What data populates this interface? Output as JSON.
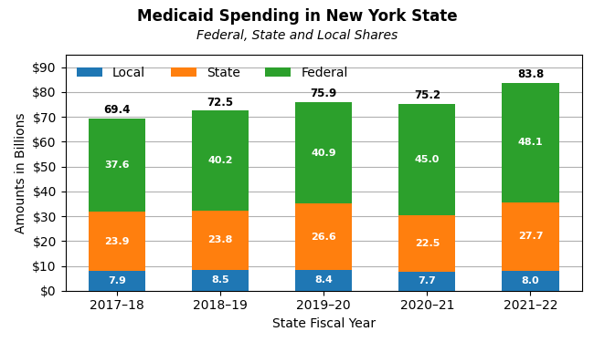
{
  "chart_data": {
    "type": "bar",
    "stacked": true,
    "title": "Medicaid Spending in New York State",
    "subtitle": "Federal, State and Local Shares",
    "xlabel": "State Fiscal Year",
    "ylabel": "Amounts in Billions",
    "categories": [
      "2017–18",
      "2018–19",
      "2019–20",
      "2020–21",
      "2021–22"
    ],
    "series": [
      {
        "name": "Local",
        "values": [
          7.9,
          8.5,
          8.4,
          7.7,
          8.0
        ]
      },
      {
        "name": "State",
        "values": [
          23.9,
          23.8,
          26.6,
          22.5,
          27.7
        ]
      },
      {
        "name": "Federal",
        "values": [
          37.6,
          40.2,
          40.9,
          45.0,
          48.1
        ]
      }
    ],
    "totals": [
      69.4,
      72.5,
      75.9,
      75.2,
      83.8
    ],
    "ylim": [
      0,
      95
    ],
    "yticks": [
      {
        "value": 0,
        "label": "$0"
      },
      {
        "value": 10,
        "label": "$10"
      },
      {
        "value": 20,
        "label": "$20"
      },
      {
        "value": 30,
        "label": "$30"
      },
      {
        "value": 40,
        "label": "$40"
      },
      {
        "value": 50,
        "label": "$50"
      },
      {
        "value": 60,
        "label": "$60"
      },
      {
        "value": 70,
        "label": "$70"
      },
      {
        "value": 80,
        "label": "$80"
      },
      {
        "value": 90,
        "label": "$90"
      }
    ],
    "grid": true,
    "legend": "upper left",
    "data_labels": true
  }
}
